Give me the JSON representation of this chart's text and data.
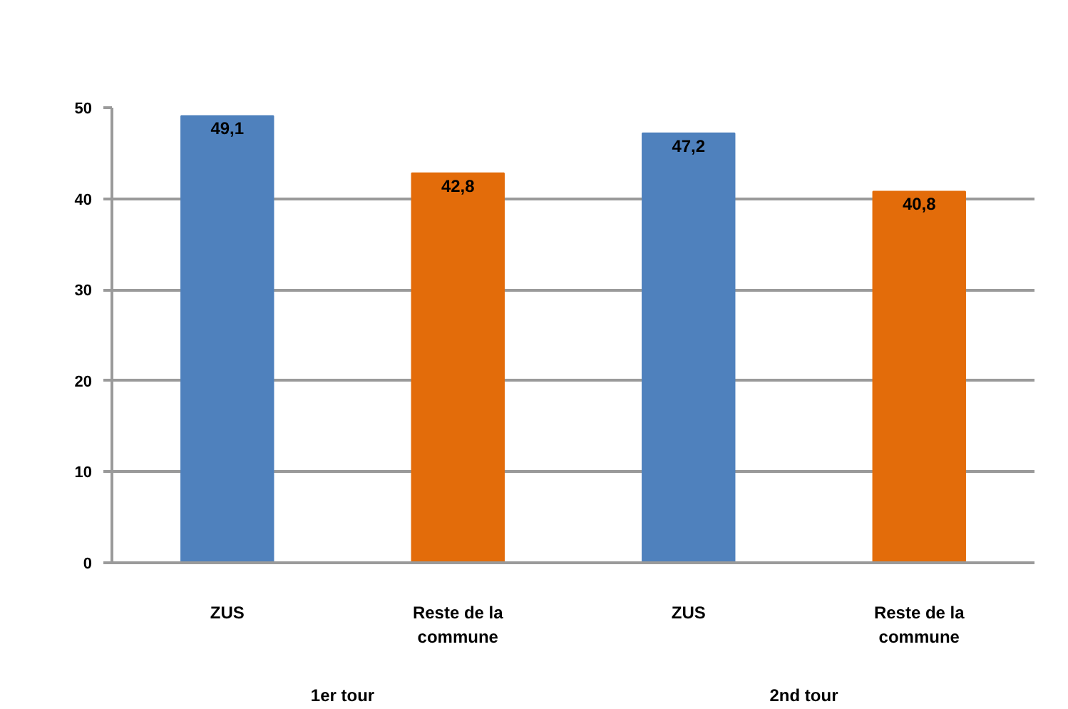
{
  "chart_data": {
    "type": "bar",
    "categories": [
      "ZUS",
      "Reste de la commune",
      "ZUS",
      "Reste de la commune"
    ],
    "values": [
      49.1,
      42.8,
      47.2,
      40.8
    ],
    "colors": [
      "#4f81bd",
      "#e36c0a",
      "#4f81bd",
      "#e36c0a"
    ],
    "value_labels": [
      "49,1",
      "42,8",
      "47,2",
      "40,8"
    ],
    "annotations": [
      "1er tour",
      "2nd tour"
    ],
    "ylim": [
      0,
      50
    ],
    "yticks": [
      0,
      10,
      20,
      30,
      40,
      50
    ],
    "grid": "y"
  }
}
